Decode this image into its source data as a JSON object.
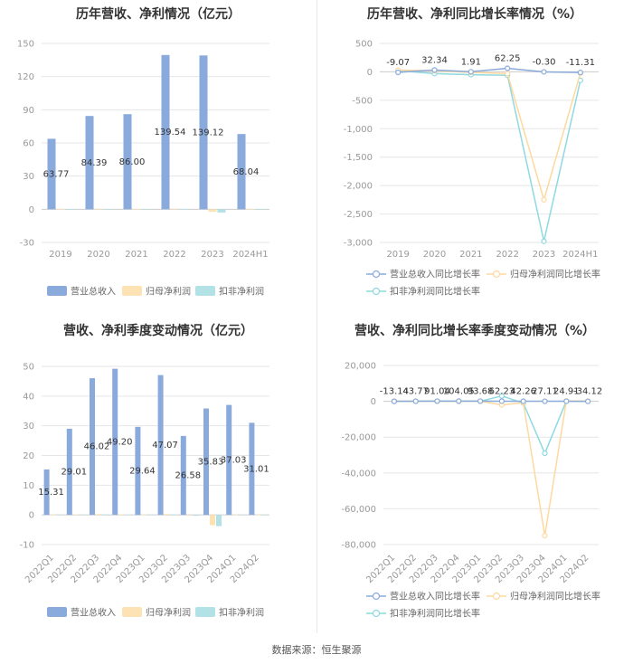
{
  "source": "数据来源：恒生聚源",
  "colors": {
    "revenue": "#8aaadc",
    "parent_np": "#fde3b4",
    "deducted_np": "#b2e2e6",
    "revenue_line": "#8aaadc",
    "parent_line": "#fdd9a0",
    "deducted_line": "#8fd9e0",
    "grid": "#e6e6e6",
    "axis": "#cccccc"
  },
  "chart_data": [
    {
      "type": "bar",
      "title": "历年营收、净利情况（亿元）",
      "categories": [
        "2019",
        "2020",
        "2021",
        "2022",
        "2023",
        "2024H1"
      ],
      "yticks": [
        -30,
        0,
        30,
        60,
        90,
        120,
        150
      ],
      "ylim": [
        -30,
        150
      ],
      "legend_position": "bottom",
      "series": [
        {
          "name": "营业总收入",
          "values": [
            63.77,
            84.39,
            86.0,
            139.54,
            139.12,
            68.04
          ],
          "labels": [
            "63.77",
            "84.39",
            "86.00",
            "139.54",
            "139.12",
            "68.04"
          ]
        },
        {
          "name": "归母净利润",
          "values": [
            0.3,
            0.4,
            0.3,
            0.5,
            -2.3,
            0.2
          ]
        },
        {
          "name": "扣非净利润",
          "values": [
            0.1,
            0.2,
            0.1,
            0.3,
            -2.9,
            0.1
          ]
        }
      ]
    },
    {
      "type": "line",
      "title": "历年营收、净利同比增长率情况（%）",
      "categories": [
        "2019",
        "2020",
        "2021",
        "2022",
        "2023",
        "2024H1"
      ],
      "yticks": [
        -3000,
        -2500,
        -2000,
        -1500,
        -1000,
        -500,
        0,
        500
      ],
      "yticklabels": [
        "-3,000",
        "-2,500",
        "-2,000",
        "-1,500",
        "-1,000",
        "-500",
        "0",
        "500"
      ],
      "ylim": [
        -3000,
        500
      ],
      "legend_position": "bottom",
      "series": [
        {
          "name": "营业总收入同比增长率",
          "values": [
            -9.07,
            32.34,
            1.91,
            62.25,
            -0.3,
            -11.31
          ],
          "labels": [
            "-9.07",
            "32.34",
            "1.91",
            "62.25",
            "-0.30",
            "-11.31"
          ]
        },
        {
          "name": "归母净利润同比增长率",
          "values": [
            30,
            20,
            -10,
            -30,
            -2250,
            -20
          ]
        },
        {
          "name": "扣非净利润同比增长率",
          "values": [
            20,
            -30,
            -50,
            -60,
            -2980,
            -150
          ]
        }
      ]
    },
    {
      "type": "bar",
      "title": "营收、净利季度变动情况（亿元）",
      "categories": [
        "2022Q1",
        "2022Q2",
        "2022Q3",
        "2022Q4",
        "2023Q1",
        "2023Q2",
        "2023Q3",
        "2023Q4",
        "2024Q1",
        "2024Q2"
      ],
      "yticks": [
        -10,
        0,
        10,
        20,
        30,
        40,
        50
      ],
      "ylim": [
        -10,
        50
      ],
      "legend_position": "bottom",
      "series": [
        {
          "name": "营业总收入",
          "values": [
            15.31,
            29.01,
            46.02,
            49.2,
            29.64,
            47.07,
            26.58,
            35.83,
            37.03,
            31.01
          ],
          "labels": [
            "15.31",
            "29.01",
            "46.02",
            "49.20",
            "29.64",
            "47.07",
            "26.58",
            "35.83",
            "37.03",
            "31.01"
          ]
        },
        {
          "name": "归母净利润",
          "values": [
            0.1,
            0.2,
            0.3,
            0.2,
            0.1,
            0.3,
            -0.2,
            -3.5,
            0.1,
            0.1
          ]
        },
        {
          "name": "扣非净利润",
          "values": [
            0.05,
            0.1,
            0.2,
            0.1,
            0.05,
            0.2,
            -0.3,
            -3.8,
            0.05,
            0.05
          ]
        }
      ]
    },
    {
      "type": "line",
      "title": "营收、净利同比增长率季度变动情况（%）",
      "categories": [
        "2022Q1",
        "2022Q2",
        "2022Q3",
        "2022Q4",
        "2023Q1",
        "2023Q2",
        "2023Q3",
        "2023Q4",
        "2024Q1",
        "2024Q2"
      ],
      "yticks": [
        -80000,
        -60000,
        -40000,
        -20000,
        0,
        20000
      ],
      "yticklabels": [
        "-80,000",
        "-60,000",
        "-40,000",
        "-20,000",
        "0",
        "20,000"
      ],
      "ylim": [
        -80000,
        20000
      ],
      "legend_position": "bottom",
      "series": [
        {
          "name": "营业总收入同比增长率",
          "values": [
            -13.14,
            43.77,
            91.04,
            104.05,
            93.68,
            62.23,
            42.26,
            27.11,
            24.91,
            -34.12
          ],
          "labels": [
            "-13.14",
            "43.77",
            "91.04",
            "104.05",
            "93.68",
            "62.23",
            "42.26",
            "27.11",
            "24.91",
            "-34.12"
          ]
        },
        {
          "name": "归母净利润同比增长率",
          "values": [
            50,
            30,
            80,
            60,
            40,
            -2000,
            -800,
            -75000,
            200,
            100
          ]
        },
        {
          "name": "扣非净利润同比增长率",
          "values": [
            30,
            20,
            60,
            40,
            30,
            3000,
            -1000,
            -29000,
            150,
            80
          ]
        }
      ]
    }
  ]
}
